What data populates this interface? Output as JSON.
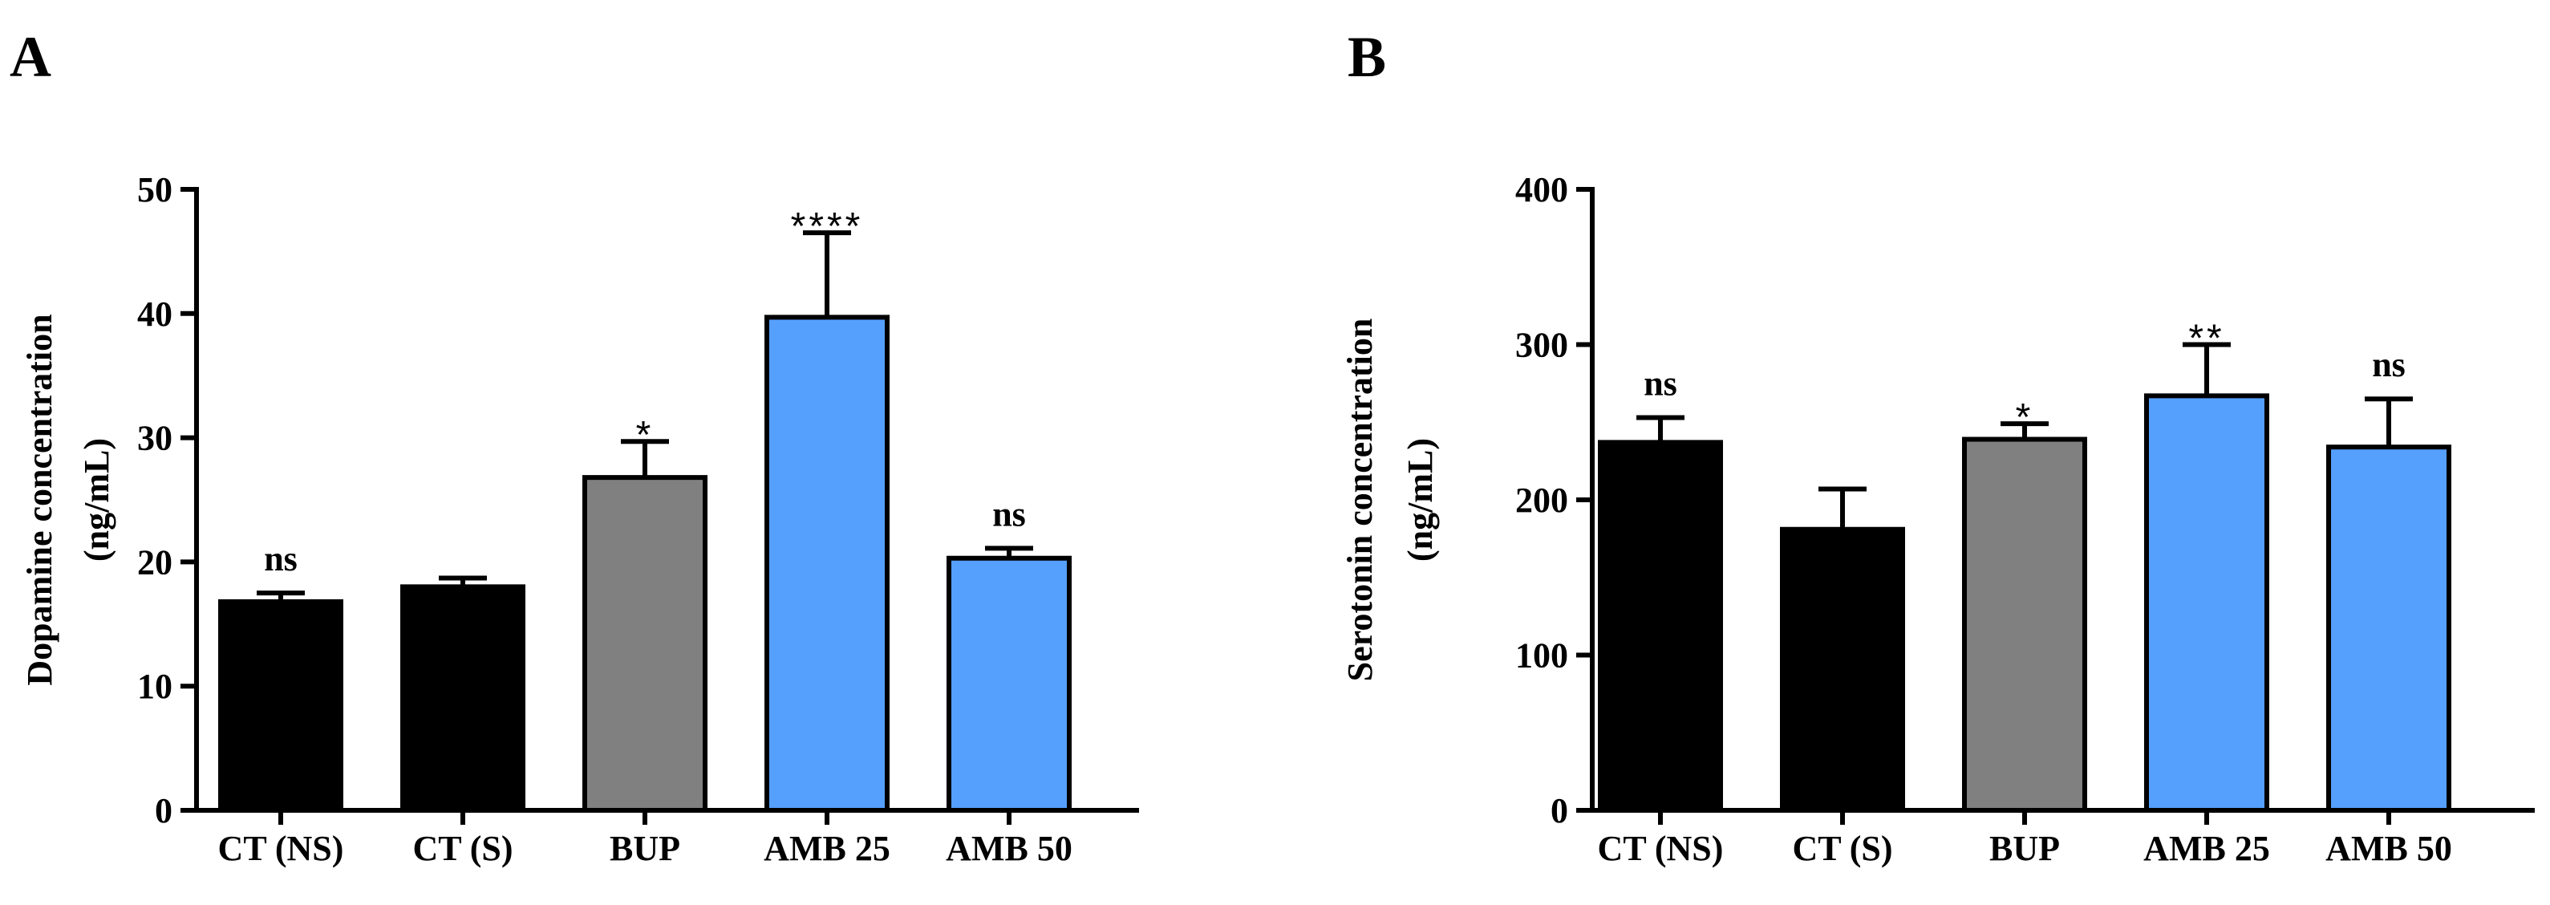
{
  "chart_data": [
    {
      "type": "bar",
      "panel": "A",
      "ylabel_line1": "Dopamine concentration",
      "ylabel_line2": "(ng/mL)",
      "ylim": [
        0,
        50
      ],
      "yticks": [
        0,
        10,
        20,
        30,
        40,
        50
      ],
      "categories": [
        "CT (NS)",
        "CT (S)",
        "BUP",
        "AMB 25",
        "AMB 50"
      ],
      "values": [
        16.8,
        18.0,
        26.8,
        39.7,
        20.3
      ],
      "errors": [
        0.7,
        0.7,
        2.9,
        6.8,
        0.8
      ],
      "significance": [
        "ns",
        "",
        "*",
        "****",
        "ns"
      ],
      "colors": [
        "#000000",
        "#000000",
        "#808080",
        "#559ffd",
        "#559ffd"
      ]
    },
    {
      "type": "bar",
      "panel": "B",
      "ylabel_line1": "Serotonin concentration",
      "ylabel_line2": "(ng/mL)",
      "ylim": [
        0,
        400
      ],
      "yticks": [
        0,
        100,
        200,
        300,
        400
      ],
      "categories": [
        "CT (NS)",
        "CT (S)",
        "BUP",
        "AMB 25",
        "AMB 50"
      ],
      "values": [
        237,
        181,
        239,
        267,
        234
      ],
      "errors": [
        16,
        26,
        10,
        33,
        31
      ],
      "significance": [
        "ns",
        "",
        "*",
        "**",
        "ns"
      ],
      "colors": [
        "#000000",
        "#000000",
        "#808080",
        "#559ffd",
        "#559ffd"
      ]
    }
  ]
}
